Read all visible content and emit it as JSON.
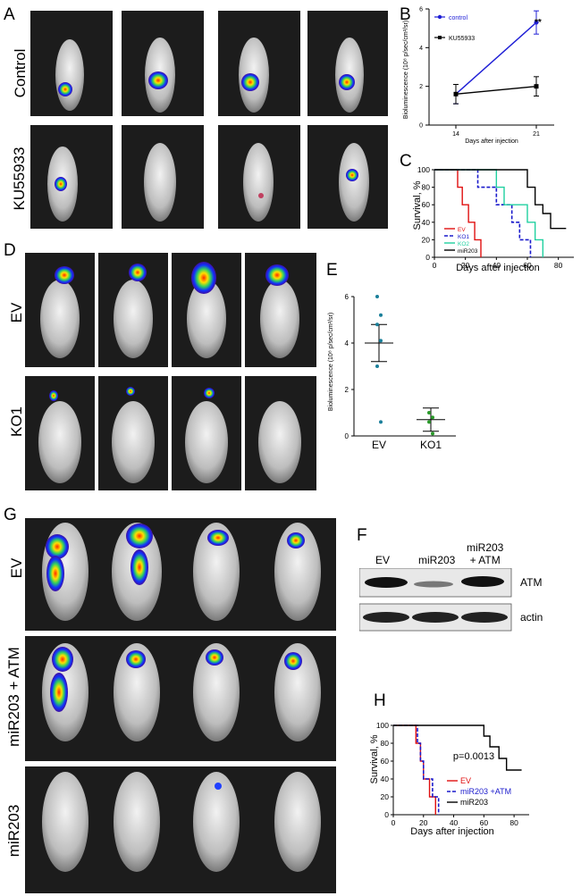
{
  "panels": {
    "A": "A",
    "B": "B",
    "C": "C",
    "D": "D",
    "E": "E",
    "F": "F",
    "G": "G",
    "H": "H"
  },
  "panelA": {
    "rows": [
      "Control",
      "KU55933"
    ]
  },
  "panelD": {
    "rows": [
      "EV",
      "KO1"
    ]
  },
  "panelG": {
    "rows": [
      "EV",
      "miR203 + ATM",
      "miR203"
    ]
  },
  "panelF": {
    "lanes": [
      "EV",
      "miR203",
      "miR203\n+ ATM"
    ],
    "bands": [
      "ATM",
      "actin"
    ],
    "lane3_line1": "miR203",
    "lane3_line2": "+ ATM"
  },
  "chartB": {
    "legend": [
      "control",
      "KU55933"
    ],
    "ylabel": "Bioluminescence (10⁸ p/sec/cm²/sr)",
    "xlabel": "Days after injection",
    "xticks": [
      "14",
      "21"
    ],
    "yticks": [
      "0",
      "2",
      "4",
      "6"
    ],
    "sig": "**",
    "colors": {
      "control": "#1f1fd6",
      "KU55933": "#000000"
    }
  },
  "chart_data": [
    {
      "type": "line",
      "title": "",
      "xlabel": "Days after injection",
      "ylabel": "Bioluminescence (10⁸ p/sec/cm²/sr)",
      "x": [
        14,
        21
      ],
      "ylim": [
        0,
        6
      ],
      "series": [
        {
          "name": "control",
          "values": [
            1.6,
            5.3
          ],
          "err": [
            0.5,
            0.6
          ]
        },
        {
          "name": "KU55933",
          "values": [
            1.6,
            2.0
          ],
          "err": [
            0.5,
            0.5
          ]
        }
      ]
    },
    {
      "type": "line",
      "title": "",
      "xlabel": "Days after injection",
      "ylabel": "Survival, %",
      "xticks": [
        0,
        20,
        40,
        60,
        80
      ],
      "yticks": [
        0,
        20,
        40,
        60,
        80,
        100
      ],
      "series": [
        {
          "name": "EV",
          "steps": [
            [
              0,
              100
            ],
            [
              15,
              100
            ],
            [
              15,
              80
            ],
            [
              18,
              80
            ],
            [
              18,
              60
            ],
            [
              22,
              60
            ],
            [
              22,
              40
            ],
            [
              26,
              40
            ],
            [
              26,
              20
            ],
            [
              30,
              20
            ],
            [
              30,
              0
            ]
          ]
        },
        {
          "name": "KO1",
          "steps": [
            [
              0,
              100
            ],
            [
              28,
              100
            ],
            [
              28,
              80
            ],
            [
              40,
              80
            ],
            [
              40,
              60
            ],
            [
              50,
              60
            ],
            [
              50,
              40
            ],
            [
              55,
              40
            ],
            [
              55,
              20
            ],
            [
              62,
              20
            ],
            [
              62,
              0
            ]
          ]
        },
        {
          "name": "KO2",
          "steps": [
            [
              0,
              100
            ],
            [
              40,
              100
            ],
            [
              40,
              80
            ],
            [
              45,
              80
            ],
            [
              45,
              60
            ],
            [
              60,
              60
            ],
            [
              60,
              40
            ],
            [
              65,
              40
            ],
            [
              65,
              20
            ],
            [
              70,
              20
            ],
            [
              70,
              0
            ]
          ]
        },
        {
          "name": "miR203",
          "steps": [
            [
              0,
              100
            ],
            [
              60,
              100
            ],
            [
              60,
              80
            ],
            [
              65,
              80
            ],
            [
              65,
              60
            ],
            [
              70,
              60
            ],
            [
              70,
              50
            ],
            [
              75,
              50
            ],
            [
              75,
              33
            ],
            [
              85,
              33
            ]
          ]
        }
      ]
    },
    {
      "type": "scatter",
      "title": "",
      "ylabel": "Bioluminescence (10⁸ p/sec/cm²/sr)",
      "categories": [
        "EV",
        "KO1"
      ],
      "ylim": [
        0,
        6
      ],
      "yticks": [
        "0",
        "2",
        "4",
        "6"
      ],
      "series": [
        {
          "name": "EV",
          "values": [
            6.0,
            5.2,
            4.8,
            4.1,
            3.0,
            0.6
          ],
          "mean": 4.0,
          "sem": 0.8
        },
        {
          "name": "KO1",
          "values": [
            1.0,
            0.8,
            0.6,
            0.1
          ],
          "mean": 0.7,
          "sem": 0.5
        }
      ]
    },
    {
      "type": "line",
      "title": "",
      "xlabel": "Days after injection",
      "ylabel": "Survival, %",
      "annotation": "p=0.0013",
      "xticks": [
        0,
        20,
        40,
        60,
        80
      ],
      "yticks": [
        0,
        20,
        40,
        60,
        80,
        100
      ],
      "series": [
        {
          "name": "EV",
          "steps": [
            [
              0,
              100
            ],
            [
              15,
              100
            ],
            [
              15,
              80
            ],
            [
              18,
              80
            ],
            [
              18,
              60
            ],
            [
              20,
              60
            ],
            [
              20,
              40
            ],
            [
              24,
              40
            ],
            [
              24,
              20
            ],
            [
              28,
              20
            ],
            [
              28,
              0
            ]
          ]
        },
        {
          "name": "miR203 +ATM",
          "steps": [
            [
              0,
              100
            ],
            [
              16,
              100
            ],
            [
              16,
              80
            ],
            [
              18,
              80
            ],
            [
              18,
              60
            ],
            [
              20,
              60
            ],
            [
              20,
              40
            ],
            [
              26,
              40
            ],
            [
              26,
              20
            ],
            [
              30,
              20
            ],
            [
              30,
              0
            ]
          ]
        },
        {
          "name": "miR203",
          "steps": [
            [
              0,
              100
            ],
            [
              60,
              100
            ],
            [
              60,
              88
            ],
            [
              64,
              88
            ],
            [
              64,
              76
            ],
            [
              70,
              76
            ],
            [
              70,
              63
            ],
            [
              75,
              63
            ],
            [
              75,
              50
            ],
            [
              85,
              50
            ]
          ]
        }
      ]
    }
  ],
  "chartC": {
    "legend": [
      "EV",
      "KO1",
      "KO2",
      "miR203"
    ],
    "ylabel": "Survival, %",
    "xlabel": "Days after injection",
    "xticks": [
      "0",
      "20",
      "40",
      "60",
      "80"
    ],
    "yticks": [
      "0",
      "20",
      "40",
      "60",
      "80",
      "100"
    ],
    "colors": {
      "EV": "#e01010",
      "KO1": "#1a1acc",
      "KO2": "#20d0a0",
      "miR203": "#000000"
    }
  },
  "chartE": {
    "ylabel": "Bioluminescence (10⁸ p/sec/cm²/sr)",
    "categories": [
      "EV",
      "KO1"
    ],
    "yticks": [
      "0",
      "2",
      "4",
      "6"
    ],
    "colors": {
      "EV": "#1a7f9a",
      "KO1": "#2a9a2a"
    }
  },
  "chartH": {
    "legend": [
      "EV",
      "miR203 +ATM",
      "miR203"
    ],
    "ylabel": "Survival, %",
    "xlabel": "Days after injection",
    "annotation": "p=0.0013",
    "xticks": [
      "0",
      "20",
      "40",
      "60",
      "80"
    ],
    "yticks": [
      "0",
      "20",
      "40",
      "60",
      "80",
      "100"
    ],
    "colors": {
      "EV": "#e01010",
      "miR203 +ATM": "#1a1acc",
      "miR203": "#000000"
    }
  }
}
